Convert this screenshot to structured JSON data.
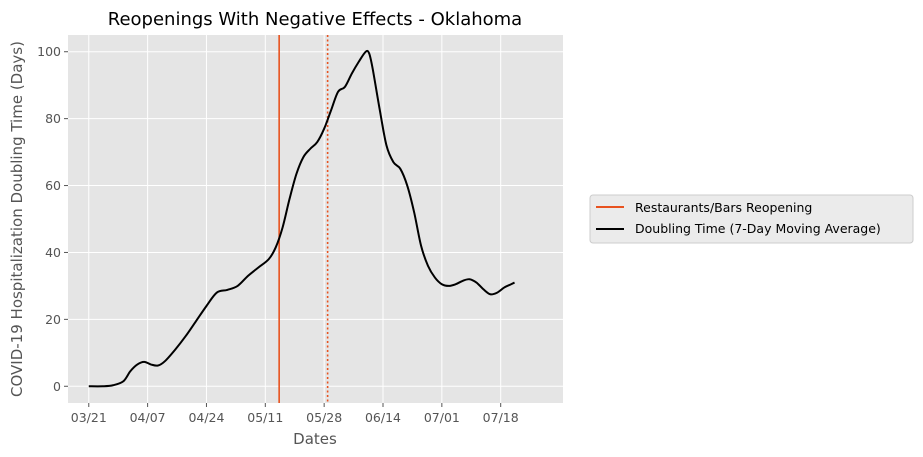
{
  "chart_data": {
    "type": "line",
    "title": "Reopenings With Negative Effects - Oklahoma",
    "xlabel": "Dates",
    "ylabel": "COVID-19 Hospitalization Doubling Time (Days)",
    "x_tick_labels": [
      "03/21",
      "04/07",
      "04/24",
      "05/11",
      "05/28",
      "06/14",
      "07/01",
      "07/18"
    ],
    "x_tick_days": [
      0,
      17,
      34,
      51,
      68,
      85,
      102,
      119
    ],
    "y_ticks": [
      0,
      20,
      40,
      60,
      80,
      100
    ],
    "xlim_days": [
      -6,
      137
    ],
    "ylim": [
      -5,
      105
    ],
    "grid": true,
    "legend_position": "outside-right",
    "colors": {
      "background": "#e5e5e5",
      "grid": "#ffffff",
      "series": "#000000",
      "reopening": "#e8521f"
    },
    "vlines": [
      {
        "name": "Restaurants/Bars Reopening",
        "x_day": 55,
        "style": "solid",
        "color": "#e8521f"
      },
      {
        "x_day": 69,
        "style": "dotted",
        "color": "#e8521f"
      }
    ],
    "series": [
      {
        "name": "Doubling Time (7-Day Moving Average)",
        "color": "#000000",
        "points": [
          [
            0,
            0
          ],
          [
            4,
            0
          ],
          [
            7,
            0.3
          ],
          [
            10,
            1.5
          ],
          [
            12,
            4.5
          ],
          [
            14,
            6.5
          ],
          [
            16,
            7.3
          ],
          [
            18,
            6.5
          ],
          [
            20,
            6.2
          ],
          [
            22,
            7.5
          ],
          [
            25,
            11
          ],
          [
            28,
            15
          ],
          [
            31,
            19.5
          ],
          [
            34,
            24
          ],
          [
            37,
            28
          ],
          [
            40,
            28.8
          ],
          [
            43,
            30
          ],
          [
            46,
            33
          ],
          [
            49,
            35.5
          ],
          [
            52,
            38
          ],
          [
            54,
            41.5
          ],
          [
            56,
            47.5
          ],
          [
            58,
            56
          ],
          [
            60,
            63.5
          ],
          [
            62,
            68.5
          ],
          [
            64,
            71
          ],
          [
            66,
            73
          ],
          [
            68,
            77
          ],
          [
            70,
            82.5
          ],
          [
            72,
            88
          ],
          [
            74,
            89.5
          ],
          [
            76,
            93.5
          ],
          [
            78,
            97
          ],
          [
            80,
            100
          ],
          [
            81,
            99.5
          ],
          [
            82,
            95
          ],
          [
            84,
            83
          ],
          [
            86,
            72
          ],
          [
            88,
            67
          ],
          [
            90,
            65
          ],
          [
            92,
            60
          ],
          [
            94,
            52
          ],
          [
            96,
            42
          ],
          [
            98,
            36
          ],
          [
            100,
            32.5
          ],
          [
            102,
            30.5
          ],
          [
            104,
            30
          ],
          [
            106,
            30.5
          ],
          [
            108,
            31.5
          ],
          [
            110,
            32
          ],
          [
            112,
            31
          ],
          [
            114,
            29
          ],
          [
            116,
            27.5
          ],
          [
            118,
            28
          ],
          [
            120,
            29.5
          ],
          [
            122,
            30.5
          ],
          [
            123,
            31
          ]
        ]
      }
    ]
  }
}
